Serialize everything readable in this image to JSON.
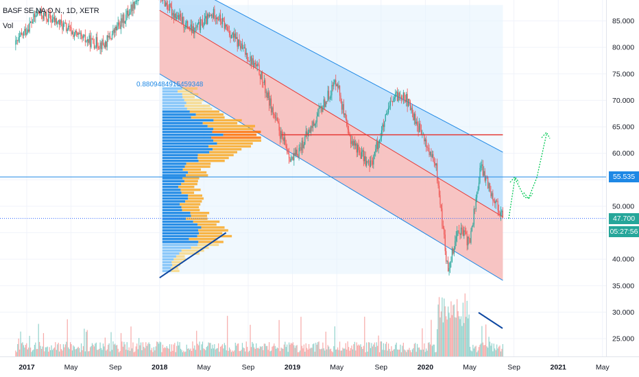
{
  "header": {
    "symbol": "BASF SE NA O.N., 1D, XETR",
    "volume_label": "Vol"
  },
  "chart_data": {
    "type": "candlestick",
    "symbol": "BASF SE NA O.N.",
    "interval": "1D",
    "exchange": "XETR",
    "x_ticks": [
      "2017",
      "May",
      "Sep",
      "2018",
      "May",
      "Sep",
      "2019",
      "May",
      "Sep",
      "2020",
      "May",
      "Sep",
      "2021",
      "May"
    ],
    "y_ticks": [
      "85.000",
      "80.000",
      "75.000",
      "70.000",
      "65.000",
      "60.000",
      "55.000",
      "50.000",
      "45.000",
      "40.000",
      "35.000",
      "30.000",
      "25.000"
    ],
    "ylim": [
      22.5,
      88
    ],
    "price_path": [
      {
        "t": "2016-12",
        "v": 80.5
      },
      {
        "t": "2017-02",
        "v": 86.5
      },
      {
        "t": "2017-04",
        "v": 84.5
      },
      {
        "t": "2017-06",
        "v": 81.5
      },
      {
        "t": "2017-08",
        "v": 80.5
      },
      {
        "t": "2017-10",
        "v": 86.0
      },
      {
        "t": "2017-12",
        "v": 93.0
      },
      {
        "t": "2018-02",
        "v": 87.0
      },
      {
        "t": "2018-04",
        "v": 83.0
      },
      {
        "t": "2018-06",
        "v": 86.5
      },
      {
        "t": "2018-08",
        "v": 81.0
      },
      {
        "t": "2018-10",
        "v": 75.5
      },
      {
        "t": "2018-12",
        "v": 63.0
      },
      {
        "t": "2019-01",
        "v": 58.5
      },
      {
        "t": "2019-03",
        "v": 66.0
      },
      {
        "t": "2019-05",
        "v": 74.0
      },
      {
        "t": "2019-06",
        "v": 63.5
      },
      {
        "t": "2019-08",
        "v": 57.5
      },
      {
        "t": "2019-10",
        "v": 70.0
      },
      {
        "t": "2019-11",
        "v": 71.5
      },
      {
        "t": "2020-01",
        "v": 62.0
      },
      {
        "t": "2020-02",
        "v": 57.0
      },
      {
        "t": "2020-03",
        "v": 38.0
      },
      {
        "t": "2020-04",
        "v": 46.0
      },
      {
        "t": "2020-05",
        "v": 43.0
      },
      {
        "t": "2020-06",
        "v": 57.5
      },
      {
        "t": "2020-07",
        "v": 52.5
      },
      {
        "t": "2020-08",
        "v": 47.7
      }
    ],
    "regression_channel": {
      "upper": {
        "start": {
          "t": "2018-01",
          "v": 94.5
        },
        "end": {
          "t": "2020-08",
          "v": 60.2
        }
      },
      "middle": {
        "start": {
          "t": "2018-01",
          "v": 87.0
        },
        "end": {
          "t": "2020-08",
          "v": 48.0
        }
      },
      "lower": {
        "start": {
          "t": "2018-01",
          "v": 75.0
        },
        "end": {
          "t": "2020-08",
          "v": 36.0
        }
      },
      "correlation_label": "0.8809484915459348"
    },
    "horizontal_lines": [
      {
        "value": 63.5,
        "color": "#e53935"
      },
      {
        "value": 55.535,
        "color": "#1e88e5",
        "label": "55.535"
      },
      {
        "value": 47.7,
        "color": "#2962ff",
        "style": "dotted",
        "label": "47.700"
      }
    ],
    "price_labels": {
      "last": "47.700",
      "countdown": "05:27:56",
      "level": "55.535"
    },
    "projection_arrows": [
      [
        {
          "t": "2020-08",
          "v": 48.5
        },
        {
          "t": "2020-09",
          "v": 56.0
        },
        {
          "t": "2020-10",
          "v": 51.0
        },
        {
          "t": "2020-11",
          "v": 64.0
        }
      ]
    ],
    "trendlines": [
      {
        "start": {
          "t": "2018-01",
          "v": 36.5
        },
        "end": {
          "t": "2018-07",
          "v": 45.0
        },
        "color": "#0d47a1"
      },
      {
        "start": {
          "t": "2020-06",
          "v": 30.0
        },
        "end": {
          "t": "2020-08",
          "v": 27.0
        },
        "color": "#0d47a1"
      }
    ],
    "volume_profile": {
      "price_range": [
        37.5,
        72.5
      ],
      "colors": {
        "up": "#2196f3",
        "down": "#fbc02d",
        "value_area_up": "#1e88e5",
        "value_area_down": "#f9a825",
        "poc": "#ff6d00"
      }
    },
    "colors": {
      "up": "#26a69a",
      "down": "#ef5350",
      "channel_upper_fill": "#bbdefb",
      "channel_lower_fill": "#f8bbb9"
    }
  }
}
